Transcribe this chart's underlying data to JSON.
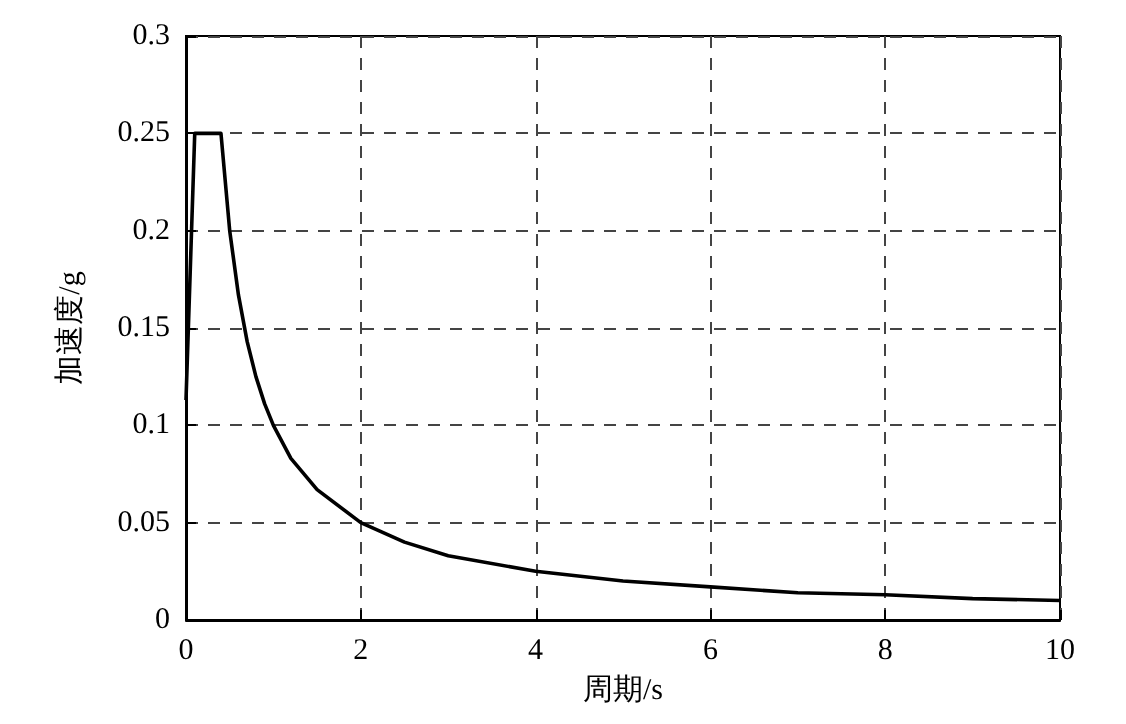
{
  "chart_data": {
    "type": "line",
    "xlabel": "周期/s",
    "ylabel": "加速度/g",
    "series": [
      {
        "color": "#000000",
        "x": [
          0,
          0.1,
          0.4,
          0.5,
          0.6,
          0.7,
          0.8,
          0.9,
          1,
          1.2,
          1.5,
          2,
          2.5,
          3,
          4,
          5,
          6,
          7,
          8,
          9,
          10
        ],
        "values": [
          0.113,
          0.25,
          0.25,
          0.2,
          0.167,
          0.143,
          0.125,
          0.111,
          0.1,
          0.083,
          0.067,
          0.05,
          0.04,
          0.033,
          0.025,
          0.02,
          0.017,
          0.014,
          0.013,
          0.011,
          0.01
        ]
      }
    ],
    "xlim": [
      0,
      10
    ],
    "xticks": [
      0,
      2,
      4,
      6,
      8,
      10
    ],
    "ylim": [
      0,
      0.3
    ],
    "yticks": [
      0,
      0.05,
      0.1,
      0.15,
      0.2,
      0.25,
      0.3
    ],
    "grid": true,
    "marker": "none",
    "line_style": "solid"
  }
}
